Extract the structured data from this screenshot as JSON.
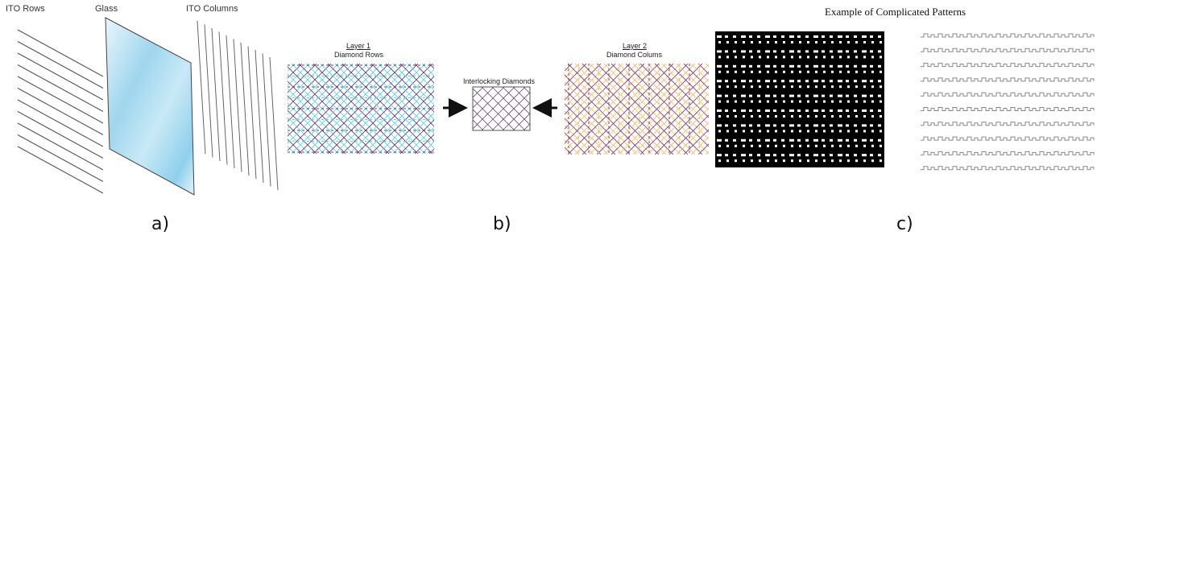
{
  "panel_a": {
    "label": "a)",
    "ito_rows_label": "ITO Rows",
    "glass_label": "Glass",
    "ito_columns_label": "ITO Columns"
  },
  "panel_b": {
    "label": "b)",
    "layer1_title": "Layer 1",
    "layer1_subtitle": "Diamond Rows",
    "center_title": "Interlocking Diamonds",
    "layer2_title": "Layer 2",
    "layer2_subtitle": "Diamond Colums"
  },
  "panel_c": {
    "label": "c)",
    "title": "Example of Complicated Patterns"
  },
  "colors": {
    "glass_light": "#e9f6fc",
    "glass_mid": "#8fd0ec",
    "layer1_primary": "#5a3f85",
    "layer1_secondary": "#5fd3de",
    "layer2_primary": "#8a3f6a",
    "layer2_secondary": "#f0c070",
    "interlock": "#6a4a7a"
  }
}
